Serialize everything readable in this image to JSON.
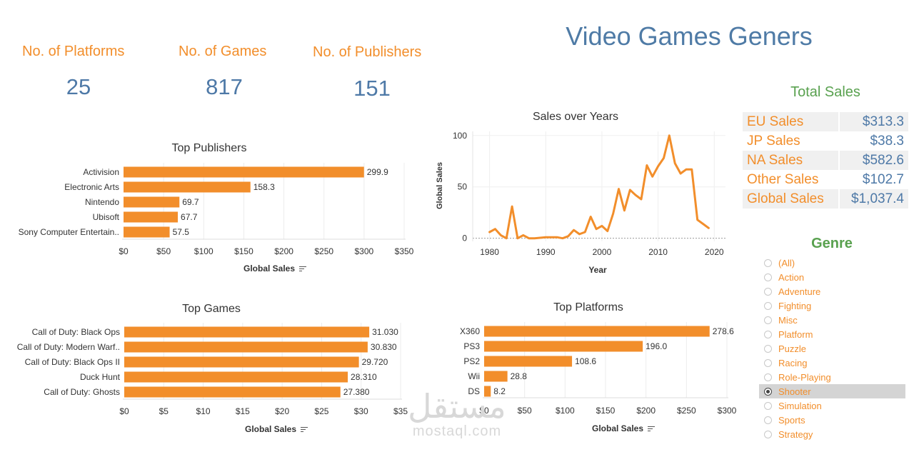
{
  "dashboard": {
    "title": "Video Games Geners",
    "kpis": [
      {
        "label": "No. of Platforms",
        "value": "25"
      },
      {
        "label": "No. of Games",
        "value": "817"
      },
      {
        "label": "No. of Publishers",
        "value": "151"
      }
    ]
  },
  "total_sales": {
    "title": "Total Sales",
    "rows": [
      {
        "label": "EU Sales",
        "value": "$313.3"
      },
      {
        "label": "JP Sales",
        "value": "$38.3"
      },
      {
        "label": "NA Sales",
        "value": "$582.6"
      },
      {
        "label": "Other Sales",
        "value": "$102.7"
      },
      {
        "label": "Global Sales",
        "value": "$1,037.4"
      }
    ]
  },
  "genre_filter": {
    "title": "Genre",
    "options": [
      "(All)",
      "Action",
      "Adventure",
      "Fighting",
      "Misc",
      "Platform",
      "Puzzle",
      "Racing",
      "Role-Playing",
      "Shooter",
      "Simulation",
      "Sports",
      "Strategy"
    ],
    "selected": "Shooter"
  },
  "watermark": {
    "arabic": "مستقل",
    "latin": "mostaql.com"
  },
  "colors": {
    "bar": "#f28e2b",
    "line": "#f28e2b",
    "kpi_value": "#4e79a7",
    "title": "#4f7ba6",
    "accent_green": "#59a14f"
  },
  "chart_data": [
    {
      "id": "top_publishers",
      "type": "bar",
      "orientation": "horizontal",
      "title": "Top Publishers",
      "xlabel": "Global Sales",
      "categories": [
        "Activision",
        "Electronic Arts",
        "Nintendo",
        "Ubisoft",
        "Sony Computer Entertain.."
      ],
      "values": [
        299.9,
        158.3,
        69.7,
        67.7,
        57.5
      ],
      "data_labels": [
        "299.9",
        "158.3",
        "69.7",
        "67.7",
        "57.5"
      ],
      "xlim": [
        0,
        350
      ],
      "ticks": [
        0,
        50,
        100,
        150,
        200,
        250,
        300,
        350
      ],
      "tick_labels": [
        "$0",
        "$50",
        "$100",
        "$150",
        "$200",
        "$250",
        "$300",
        "$350"
      ],
      "grid": true
    },
    {
      "id": "sales_over_years",
      "type": "line",
      "title": "Sales over Years",
      "xlabel": "Year",
      "ylabel": "Global Sales",
      "x": [
        1980,
        1981,
        1982,
        1983,
        1984,
        1985,
        1986,
        1987,
        1988,
        1989,
        1990,
        1991,
        1992,
        1993,
        1994,
        1995,
        1996,
        1997,
        1998,
        1999,
        2000,
        2001,
        2002,
        2003,
        2004,
        2005,
        2006,
        2007,
        2008,
        2009,
        2010,
        2011,
        2012,
        2013,
        2014,
        2015,
        2016,
        2017,
        2018,
        2019
      ],
      "y": [
        6,
        9,
        3,
        0,
        31,
        0,
        3,
        0,
        0,
        0.5,
        1,
        1,
        1,
        0,
        2,
        8,
        4,
        6,
        21,
        9,
        12,
        7,
        24,
        48,
        27,
        47,
        42,
        38,
        71,
        60,
        70,
        78,
        100,
        73,
        63,
        67,
        67,
        18,
        14,
        10
      ],
      "xlim": [
        1977,
        2022
      ],
      "ylim": [
        -3,
        104
      ],
      "xticks": [
        1980,
        1990,
        2000,
        2010,
        2020
      ],
      "yticks": [
        0,
        50,
        100
      ],
      "grid": true
    },
    {
      "id": "top_games",
      "type": "bar",
      "orientation": "horizontal",
      "title": "Top Games",
      "xlabel": "Global Sales",
      "categories": [
        "Call of Duty: Black Ops",
        "Call of Duty: Modern Warf..",
        "Call of Duty: Black Ops II",
        "Duck Hunt",
        "Call of Duty: Ghosts"
      ],
      "values": [
        31.03,
        30.83,
        29.72,
        28.31,
        27.38
      ],
      "data_labels": [
        "31.030",
        "30.830",
        "29.720",
        "28.310",
        "27.380"
      ],
      "xlim": [
        0,
        35
      ],
      "ticks": [
        0,
        5,
        10,
        15,
        20,
        25,
        30,
        35
      ],
      "tick_labels": [
        "$0",
        "$5",
        "$10",
        "$15",
        "$20",
        "$25",
        "$30",
        "$35"
      ],
      "grid": true
    },
    {
      "id": "top_platforms",
      "type": "bar",
      "orientation": "horizontal",
      "title": "Top Platforms",
      "xlabel": "Global Sales",
      "categories": [
        "X360",
        "PS3",
        "PS2",
        "Wii",
        "DS"
      ],
      "values": [
        278.6,
        196.0,
        108.6,
        28.8,
        8.2
      ],
      "data_labels": [
        "278.6",
        "196.0",
        "108.6",
        "28.8",
        "8.2"
      ],
      "xlim": [
        0,
        300
      ],
      "ticks": [
        0,
        50,
        100,
        150,
        200,
        250,
        300
      ],
      "tick_labels": [
        "$0",
        "$50",
        "$100",
        "$150",
        "$200",
        "$250",
        "$300"
      ],
      "grid": true
    }
  ]
}
